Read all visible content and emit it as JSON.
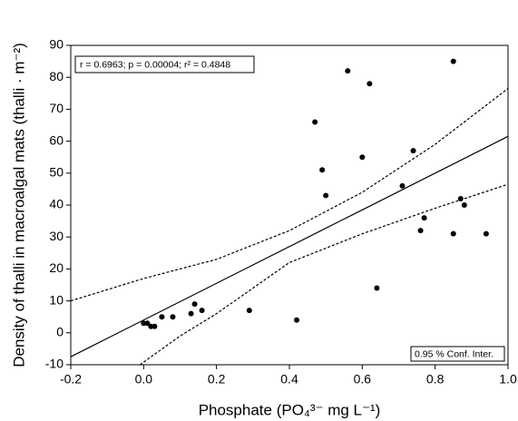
{
  "chart_data": {
    "type": "scatter",
    "x_label": "Phosphate (PO₄³⁻ mg L⁻¹)",
    "y_label": "Density of thalli in macroalgal mats (thalli · m⁻²)",
    "annotation": "r = 0.6963; p = 0.00004; r² = 0.4848",
    "conf_label": "0.95 % Conf. Inter.",
    "color": "#000000",
    "x": [
      0,
      0.01,
      0.02,
      0.03,
      0.05,
      0.08,
      0.13,
      0.14,
      0.16,
      0.29,
      0.42,
      0.47,
      0.49,
      0.5,
      0.56,
      0.6,
      0.62,
      0.64,
      0.71,
      0.74,
      0.76,
      0.77,
      0.85,
      0.85,
      0.87,
      0.88,
      0.94
    ],
    "values": [
      3,
      3,
      2,
      2,
      5,
      5,
      6,
      9,
      7,
      7,
      4,
      66,
      51,
      43,
      82,
      55,
      78,
      14,
      46,
      57,
      32,
      36,
      85,
      31,
      42,
      40,
      31
    ],
    "fit": {
      "x": [
        -0.2,
        1.0
      ],
      "values": [
        -7.5,
        61.5
      ]
    },
    "conf_upper": {
      "x": [
        -0.2,
        0,
        0.2,
        0.4,
        0.6,
        0.8,
        1.0
      ],
      "values": [
        10,
        17,
        23,
        32,
        44,
        59,
        76.5
      ]
    },
    "conf_lower": {
      "x": [
        -0.01,
        0.1,
        0.2,
        0.4,
        0.6,
        0.8,
        1.0
      ],
      "values": [
        -10,
        -1,
        6,
        22,
        31,
        39,
        46.5
      ]
    },
    "xlim": [
      -0.2,
      1.0
    ],
    "ylim": [
      -10,
      90
    ],
    "xticks": [
      -0.2,
      {
        "value": 0,
        "label": "0.0"
      },
      0.2,
      0.4,
      0.6,
      0.8,
      {
        "value": 1.0,
        "label": "1.0"
      }
    ],
    "yticks": [
      -10,
      0,
      10,
      20,
      30,
      40,
      50,
      60,
      70,
      80,
      90
    ]
  }
}
